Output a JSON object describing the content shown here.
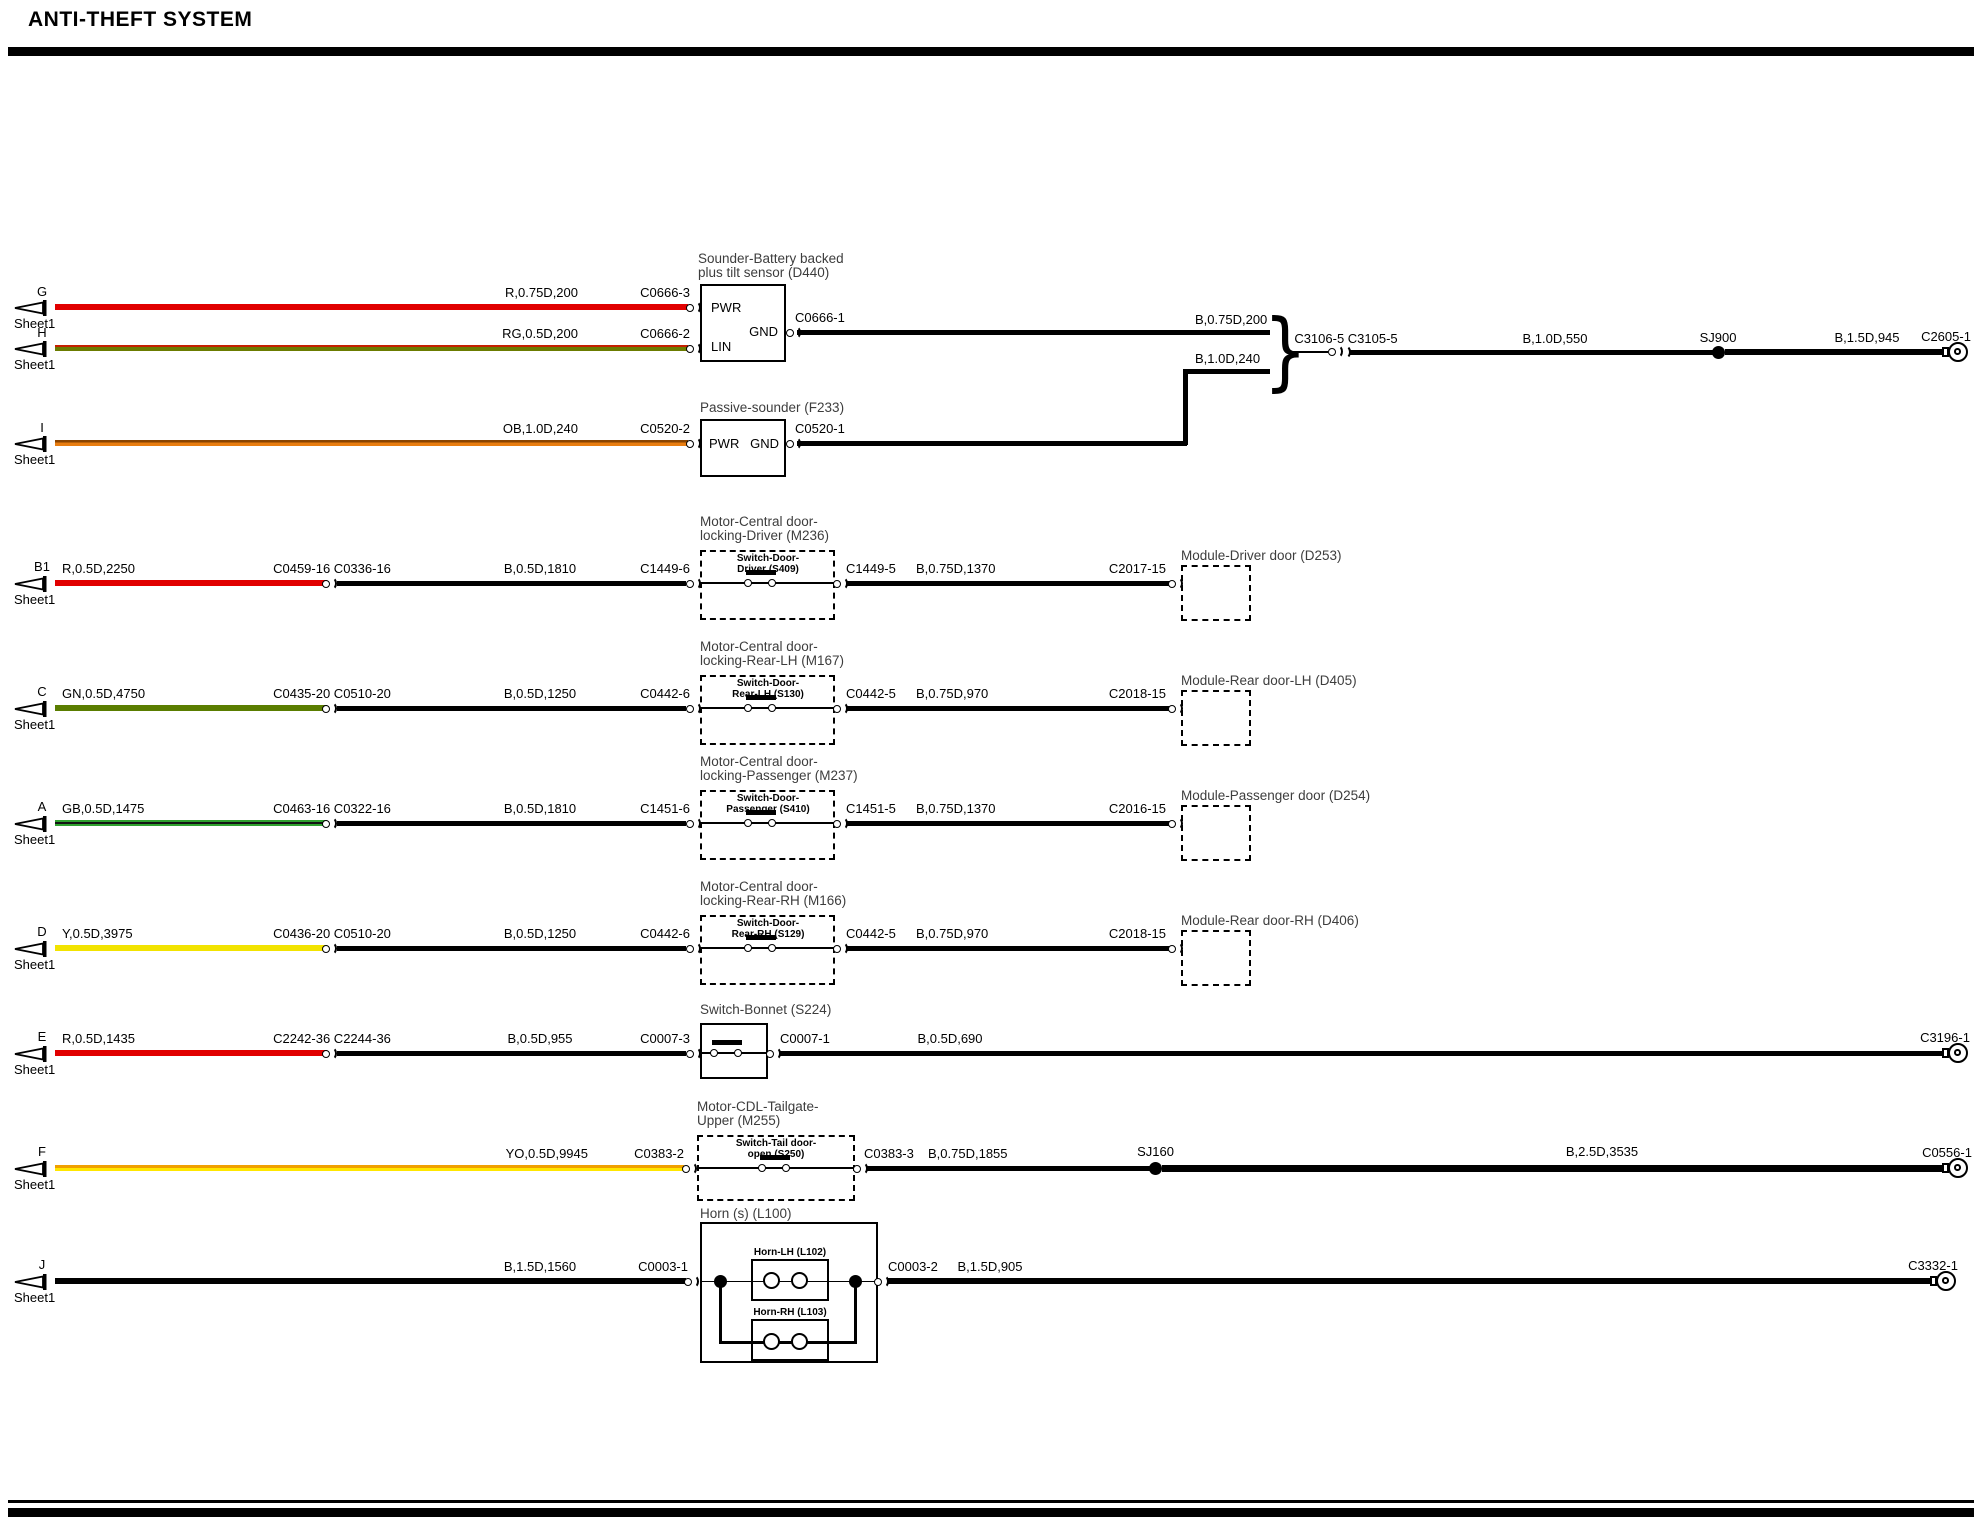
{
  "header": {
    "title": "ANTI-THEFT SYSTEM"
  },
  "wire_colors": {
    "R": "#e10000",
    "RG": [
      "#c42000",
      "#6b7c00"
    ],
    "OB": [
      "#8a4400",
      "#e87d10"
    ],
    "GN": "#5a7d00",
    "GB": [
      "#2fa02f",
      "#141414"
    ],
    "Y": "#f2e300",
    "YO": [
      "#f0a000",
      "#ffe600"
    ],
    "B": "#000000"
  },
  "sounder_section": {
    "row_g": {
      "letter": "G",
      "sheet": "Sheet1",
      "wire1": "R,0.75D,200",
      "conn": "C0666-3"
    },
    "row_h": {
      "letter": "H",
      "sheet": "Sheet1",
      "wire1": "RG,0.5D,200",
      "conn": "C0666-2"
    },
    "device": {
      "title_line1": "Sounder-Battery backed",
      "title_line2": "plus tilt sensor (D440)",
      "pin_pwr": "PWR",
      "pin_lin": "LIN",
      "pin_gnd": "GND"
    },
    "gnd": {
      "conn": "C0666-1",
      "wire": "B,0.75D,200"
    },
    "branch_wire": "B,1.0D,240",
    "junction_conn": "C3106-5 C3105-5",
    "wire_550": "B,1.0D,550",
    "splice": "SJ900",
    "wire_945": "B,1.5D,945",
    "terminal": "C2605-1"
  },
  "passive_section": {
    "row_i": {
      "letter": "I",
      "sheet": "Sheet1",
      "wire1": "OB,1.0D,240",
      "conn": "C0520-2"
    },
    "device": {
      "title": "Passive-sounder (F233)",
      "pin_pwr": "PWR",
      "pin_gnd": "GND"
    },
    "conn_out": "C0520-1"
  },
  "door_rows": [
    {
      "letter": "B1",
      "sheet": "Sheet1",
      "wire1": "R,0.5D,2250",
      "color": "red",
      "conn_pair": "C0459-16 C0336-16",
      "wire2": "B,0.5D,1810",
      "conn_in": "C1449-6",
      "comp_line1": "Motor-Central door-",
      "comp_line2": "locking-Driver (M236)",
      "sw_line1": "Switch-Door-",
      "sw_line2": "Driver (S409)",
      "conn_out": "C1449-5",
      "wire3": "B,0.75D,1370",
      "conn_mod": "C2017-15",
      "module": "Module-Driver door (D253)"
    },
    {
      "letter": "C",
      "sheet": "Sheet1",
      "wire1": "GN,0.5D,4750",
      "color": "green",
      "conn_pair": "C0435-20 C0510-20",
      "wire2": "B,0.5D,1250",
      "conn_in": "C0442-6",
      "comp_line1": "Motor-Central door-",
      "comp_line2": "locking-Rear-LH (M167)",
      "sw_line1": "Switch-Door-",
      "sw_line2": "Rear-LH (S130)",
      "conn_out": "C0442-5",
      "wire3": "B,0.75D,970",
      "conn_mod": "C2018-15",
      "module": "Module-Rear door-LH (D405)"
    },
    {
      "letter": "A",
      "sheet": "Sheet1",
      "wire1": "GB,0.5D,1475",
      "color": "green_black",
      "conn_pair": "C0463-16 C0322-16",
      "wire2": "B,0.5D,1810",
      "conn_in": "C1451-6",
      "comp_line1": "Motor-Central door-",
      "comp_line2": "locking-Passenger (M237)",
      "sw_line1": "Switch-Door-",
      "sw_line2": "Passenger (S410)",
      "conn_out": "C1451-5",
      "wire3": "B,0.75D,1370",
      "conn_mod": "C2016-15",
      "module": "Module-Passenger door (D254)"
    },
    {
      "letter": "D",
      "sheet": "Sheet1",
      "wire1": "Y,0.5D,3975",
      "color": "yellow",
      "conn_pair": "C0436-20 C0510-20",
      "wire2": "B,0.5D,1250",
      "conn_in": "C0442-6",
      "comp_line1": "Motor-Central door-",
      "comp_line2": "locking-Rear-RH (M166)",
      "sw_line1": "Switch-Door-",
      "sw_line2": "Rear-RH (S129)",
      "conn_out": "C0442-5",
      "wire3": "B,0.75D,970",
      "conn_mod": "C2018-15",
      "module": "Module-Rear door-RH (D406)"
    }
  ],
  "bonnet": {
    "letter": "E",
    "sheet": "Sheet1",
    "wire1": "R,0.5D,1435",
    "conn_pair": "C2242-36 C2244-36",
    "wire2": "B,0.5D,955",
    "conn_in": "C0007-3",
    "device": "Switch-Bonnet (S224)",
    "conn_out": "C0007-1",
    "wire3": "B,0.5D,690",
    "terminal": "C3196-1"
  },
  "tailgate": {
    "letter": "F",
    "sheet": "Sheet1",
    "wire1": "YO,0.5D,9945",
    "conn_in": "C0383-2",
    "comp_line1": "Motor-CDL-Tailgate-",
    "comp_line2": "Upper (M255)",
    "sw_line1": "Switch-Tail door-",
    "sw_line2": "open (S250)",
    "conn_out": "C0383-3",
    "wire3": "B,0.75D,1855",
    "splice": "SJ160",
    "wire4": "B,2.5D,3535",
    "terminal": "C0556-1"
  },
  "horn": {
    "letter": "J",
    "sheet": "Sheet1",
    "wire1": "B,1.5D,1560",
    "conn_in": "C0003-1",
    "device": "Horn (s) (L100)",
    "horn_lh": "Horn-LH (L102)",
    "horn_rh": "Horn-RH (L103)",
    "conn_out": "C0003-2",
    "wire3": "B,1.5D,905",
    "terminal": "C3332-1"
  }
}
